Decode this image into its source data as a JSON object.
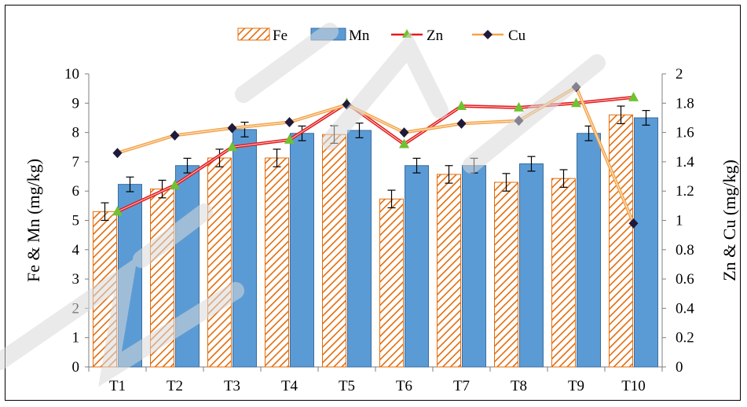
{
  "chart_data": {
    "type": "bar",
    "categories": [
      "T1",
      "T2",
      "T3",
      "T4",
      "T5",
      "T6",
      "T7",
      "T8",
      "T9",
      "T10"
    ],
    "ylabel_left": "Fe & Mn (mg/kg)",
    "ylabel_right": "Zn & Cu (mg/kg)",
    "ylim_left": [
      0,
      10
    ],
    "ylim_right": [
      0,
      2
    ],
    "yticks_left": [
      "0",
      "1",
      "2",
      "3",
      "4",
      "5",
      "6",
      "7",
      "8",
      "9",
      "10"
    ],
    "yticks_right": [
      "0",
      "0.2",
      "0.4",
      "0.6",
      "0.8",
      "1",
      "1.2",
      "1.4",
      "1.6",
      "1.8",
      "2"
    ],
    "grid": false,
    "legend_position": "top",
    "bar_series": [
      {
        "name": "Fe",
        "axis": "left",
        "color": "#E46C0A",
        "pattern": "diagonal-hatch",
        "values": [
          5.3,
          6.07,
          7.13,
          7.13,
          7.93,
          5.73,
          6.57,
          6.3,
          6.43,
          8.6
        ],
        "errors": [
          0.3,
          0.3,
          0.3,
          0.3,
          0.3,
          0.3,
          0.3,
          0.3,
          0.3,
          0.3
        ]
      },
      {
        "name": "Mn",
        "axis": "left",
        "color": "#5B9BD5",
        "pattern": "solid",
        "values": [
          6.23,
          6.87,
          8.1,
          7.97,
          8.07,
          6.87,
          6.87,
          6.93,
          7.97,
          8.5
        ],
        "errors": [
          0.25,
          0.25,
          0.25,
          0.25,
          0.25,
          0.25,
          0.25,
          0.25,
          0.25,
          0.25
        ]
      }
    ],
    "line_series": [
      {
        "name": "Zn",
        "axis": "right",
        "color": "#E31A1C",
        "marker": "triangle",
        "marker_color": "#70C230",
        "values": [
          1.06,
          1.24,
          1.5,
          1.55,
          1.8,
          1.52,
          1.78,
          1.77,
          1.8,
          1.84
        ]
      },
      {
        "name": "Cu",
        "axis": "right",
        "color": "#F4A44A",
        "marker": "diamond",
        "marker_color": "#1F1A3A",
        "values": [
          1.46,
          1.58,
          1.63,
          1.67,
          1.79,
          1.6,
          1.66,
          1.68,
          1.91,
          0.98
        ]
      }
    ]
  },
  "legend": {
    "fe_label": "Fe",
    "mn_label": "Mn",
    "zn_label": "Zn",
    "cu_label": "Cu"
  }
}
